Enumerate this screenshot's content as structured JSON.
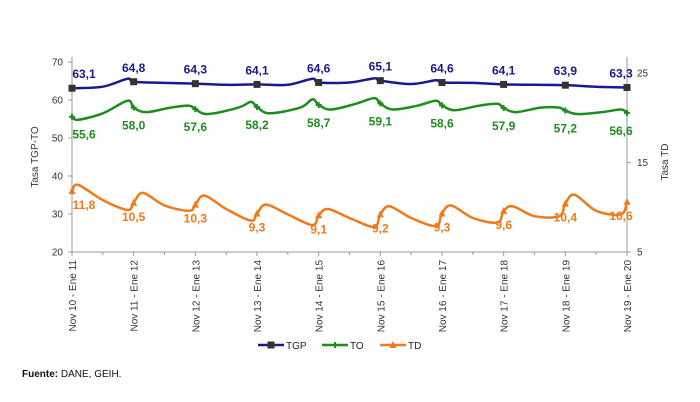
{
  "chart_data": {
    "type": "line",
    "left_axis": {
      "label": "Tasa TGP-TO",
      "range": [
        20,
        70
      ],
      "ticks": [
        20,
        30,
        40,
        50,
        60,
        70
      ]
    },
    "right_axis": {
      "label": "Tasa TD",
      "range": [
        5,
        25
      ],
      "ticks": [
        5,
        15,
        25
      ]
    },
    "categories": [
      "Nov 10 - Ene 11",
      "Nov 11 - Ene 12",
      "Nov 12 - Ene 13",
      "Nov 13 - Ene 14",
      "Nov 14 - Ene 15",
      "Nov 15 - Ene 16",
      "Nov 16 - Ene 17",
      "Nov 17 - Ene 18",
      "Nov 18 - Ene 19",
      "Nov 19 - Ene 20"
    ],
    "legend_position": "bottom",
    "series": [
      {
        "name": "TGP",
        "axis": "left",
        "color": "#1a1a8c",
        "marker": "square",
        "labels": [
          "63,1",
          "64,8",
          "64,3",
          "64,1",
          "64,6",
          "65,1",
          "64,6",
          "64,1",
          "63,9",
          "63,3"
        ],
        "values": [
          63.1,
          64.8,
          64.3,
          64.1,
          64.6,
          65.1,
          64.6,
          64.1,
          63.9,
          63.3
        ],
        "trace": [
          [
            0,
            63.1
          ],
          [
            0.5,
            63.5
          ],
          [
            0.9,
            65.6
          ],
          [
            1,
            64.8
          ],
          [
            1.5,
            64.5
          ],
          [
            2,
            64.3
          ],
          [
            2.5,
            64.0
          ],
          [
            3,
            64.1
          ],
          [
            3.5,
            64.0
          ],
          [
            3.9,
            65.6
          ],
          [
            4,
            64.6
          ],
          [
            4.5,
            64.6
          ],
          [
            4.9,
            65.7
          ],
          [
            5,
            65.1
          ],
          [
            5.5,
            64.2
          ],
          [
            5.9,
            65.2
          ],
          [
            6,
            64.6
          ],
          [
            6.5,
            64.5
          ],
          [
            7,
            64.1
          ],
          [
            7.5,
            64.0
          ],
          [
            8,
            63.9
          ],
          [
            8.5,
            63.5
          ],
          [
            9,
            63.3
          ]
        ]
      },
      {
        "name": "TO",
        "axis": "left",
        "color": "#1e8c1e",
        "marker": "plus",
        "labels": [
          "55,6",
          "58,0",
          "57,6",
          "58,2",
          "58,7",
          "59,1",
          "58,6",
          "57,9",
          "57,2",
          "56,6"
        ],
        "values": [
          55.6,
          58.0,
          57.6,
          58.2,
          58.7,
          59.1,
          58.6,
          57.9,
          57.2,
          56.6
        ],
        "trace": [
          [
            0,
            55.6
          ],
          [
            0.1,
            54.8
          ],
          [
            0.5,
            56.5
          ],
          [
            0.9,
            59.8
          ],
          [
            1,
            58.0
          ],
          [
            1.2,
            56.8
          ],
          [
            1.6,
            58.0
          ],
          [
            1.9,
            58.5
          ],
          [
            2,
            57.6
          ],
          [
            2.2,
            56.3
          ],
          [
            2.7,
            58.0
          ],
          [
            2.9,
            59.5
          ],
          [
            3,
            58.2
          ],
          [
            3.2,
            56.5
          ],
          [
            3.7,
            58.0
          ],
          [
            3.9,
            60.2
          ],
          [
            4,
            58.7
          ],
          [
            4.2,
            57.5
          ],
          [
            4.6,
            59.0
          ],
          [
            4.9,
            60.5
          ],
          [
            5,
            59.1
          ],
          [
            5.2,
            57.5
          ],
          [
            5.6,
            58.5
          ],
          [
            5.9,
            59.8
          ],
          [
            6,
            58.6
          ],
          [
            6.2,
            57.3
          ],
          [
            6.6,
            58.5
          ],
          [
            6.9,
            59.0
          ],
          [
            7,
            57.9
          ],
          [
            7.2,
            56.8
          ],
          [
            7.6,
            58.0
          ],
          [
            7.9,
            58.0
          ],
          [
            8,
            57.2
          ],
          [
            8.2,
            56.3
          ],
          [
            8.6,
            56.8
          ],
          [
            8.9,
            57.5
          ],
          [
            9,
            56.6
          ]
        ]
      },
      {
        "name": "TD",
        "axis": "right",
        "color": "#ee7a1a",
        "marker": "triangle",
        "labels": [
          "11,8",
          "10,5",
          "10,3",
          "9,3",
          "9,1",
          "9,2",
          "9,3",
          "9,6",
          "10,4",
          "10,6"
        ],
        "values": [
          11.8,
          10.5,
          10.3,
          9.3,
          9.1,
          9.2,
          9.3,
          9.6,
          10.4,
          10.6
        ],
        "trace": [
          [
            0,
            11.8
          ],
          [
            0.1,
            12.5
          ],
          [
            0.5,
            10.8
          ],
          [
            0.9,
            9.7
          ],
          [
            1,
            10.5
          ],
          [
            1.15,
            11.6
          ],
          [
            1.5,
            10.2
          ],
          [
            1.9,
            9.6
          ],
          [
            2,
            10.3
          ],
          [
            2.15,
            11.3
          ],
          [
            2.5,
            9.8
          ],
          [
            2.9,
            8.5
          ],
          [
            3,
            9.3
          ],
          [
            3.15,
            10.3
          ],
          [
            3.5,
            9.2
          ],
          [
            3.9,
            8.0
          ],
          [
            4,
            9.1
          ],
          [
            4.15,
            9.8
          ],
          [
            4.5,
            8.8
          ],
          [
            4.9,
            7.8
          ],
          [
            5,
            9.2
          ],
          [
            5.15,
            10.1
          ],
          [
            5.5,
            8.8
          ],
          [
            5.9,
            7.9
          ],
          [
            6,
            9.3
          ],
          [
            6.15,
            10.2
          ],
          [
            6.5,
            8.8
          ],
          [
            6.9,
            8.3
          ],
          [
            7,
            9.6
          ],
          [
            7.15,
            10.1
          ],
          [
            7.5,
            9.0
          ],
          [
            7.9,
            9.0
          ],
          [
            8,
            10.4
          ],
          [
            8.15,
            11.4
          ],
          [
            8.5,
            9.6
          ],
          [
            8.9,
            9.2
          ],
          [
            9,
            10.6
          ]
        ]
      }
    ]
  },
  "footer": {
    "bold": "Fuente:",
    "text": " DANE, GEIH."
  }
}
